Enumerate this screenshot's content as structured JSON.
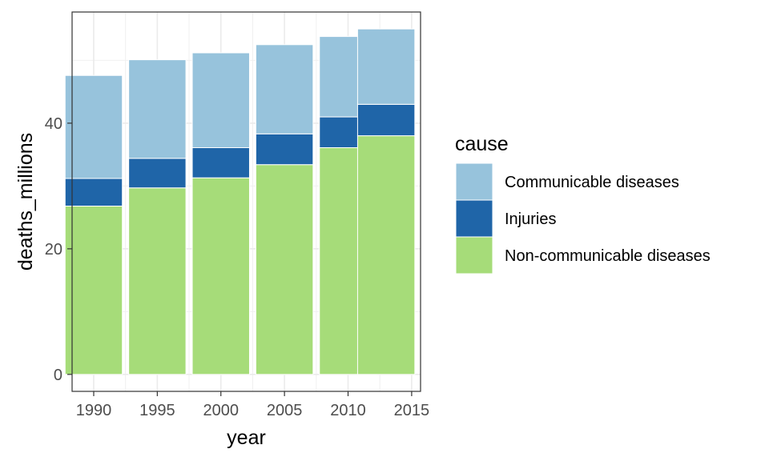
{
  "chart_data": {
    "type": "bar",
    "stacked": true,
    "xlabel": "year",
    "ylabel": "deaths_millions",
    "x_ticks": [
      "1990",
      "1995",
      "2000",
      "2005",
      "2010",
      "2015"
    ],
    "y_ticks": [
      "0",
      "20",
      "40"
    ],
    "xlim": [
      1988.3,
      2015.7
    ],
    "ylim": [
      -2.7,
      57.7
    ],
    "grid": true,
    "legend": {
      "title": "cause",
      "position": "right"
    },
    "categories": [
      1990,
      1995,
      2000,
      2005,
      2010,
      2013
    ],
    "series": [
      {
        "name": "Non-communicable diseases",
        "color": "#a6dc79",
        "values": [
          26.8,
          29.7,
          31.3,
          33.4,
          36.1,
          38.0
        ]
      },
      {
        "name": "Injuries",
        "color": "#1f65a8",
        "values": [
          4.4,
          4.7,
          4.8,
          4.9,
          4.9,
          5.0
        ]
      },
      {
        "name": "Communicable diseases",
        "color": "#97c3dc",
        "values": [
          16.4,
          15.7,
          15.1,
          14.2,
          12.8,
          12.0
        ]
      }
    ],
    "legend_order": [
      "Communicable diseases",
      "Injuries",
      "Non-communicable diseases"
    ]
  }
}
